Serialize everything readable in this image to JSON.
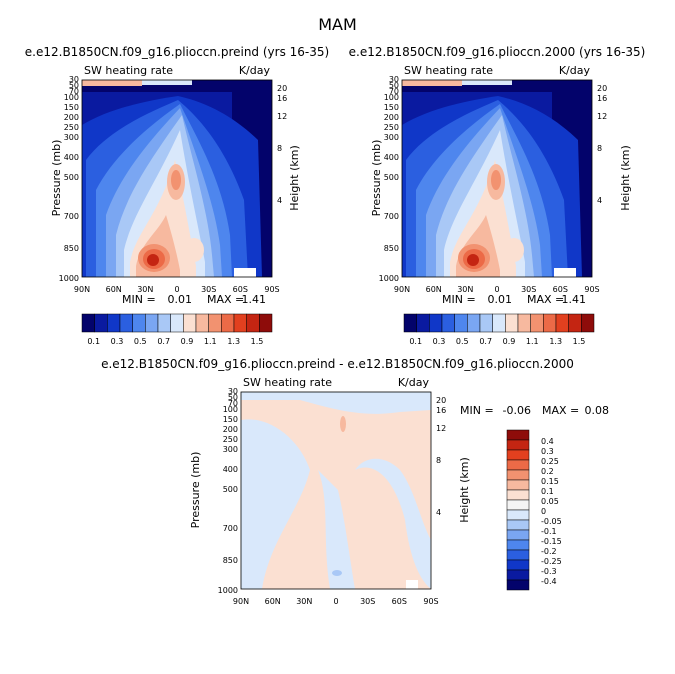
{
  "figure": {
    "title": "MAM",
    "colors": {
      "scale": [
        "#03036b",
        "#0a1aa0",
        "#1037c8",
        "#2b5fe0",
        "#4e86ee",
        "#7aa6f2",
        "#a9c8f6",
        "#d9e8fb",
        "#fbe0d2",
        "#f7b99f",
        "#f29270",
        "#ec6a47",
        "#e2401f",
        "#c42512",
        "#8e0c0a"
      ],
      "diff_scale": [
        "#03036b",
        "#0a1aa0",
        "#1037c8",
        "#2b5fe0",
        "#4e86ee",
        "#7aa6f2",
        "#a9c8f6",
        "#d9e8fb",
        "#f4f4f4",
        "#fbe0d2",
        "#f7b99f",
        "#f29270",
        "#ec6a47",
        "#e2401f",
        "#c42512",
        "#8e0c0a"
      ]
    }
  },
  "chart_data": [
    {
      "type": "heatmap",
      "title": "e.e12.B1850CN.f09_g16.plioccn.preind (yrs 16-35)",
      "left_label": "SW heating rate",
      "right_label": "K/day",
      "ylabel": "Pressure (mb)",
      "ylabel_right": "Height (km)",
      "xticks": [
        "90N",
        "60N",
        "30N",
        "0",
        "30S",
        "60S",
        "90S"
      ],
      "yticks": [
        "30",
        "50",
        "70",
        "100",
        "150",
        "200",
        "250",
        "300",
        "400",
        "500",
        "700",
        "850",
        "1000"
      ],
      "height_ticks": [
        "20",
        "16",
        "12",
        "8",
        "4"
      ],
      "min_label": "MIN =",
      "min_value": "0.01",
      "max_label": "MAX =",
      "max_value": "1.41",
      "colorbar_labels": [
        "0.1",
        "0.3",
        "0.5",
        "0.7",
        "0.9",
        "1.1",
        "1.3",
        "1.5"
      ],
      "features": {
        "tropical_core_max": 1.41,
        "surface_max_latitude": "20N",
        "minimum_region": "high southern latitudes"
      }
    },
    {
      "type": "heatmap",
      "title": "e.e12.B1850CN.f09_g16.plioccn.2000 (yrs 16-35)",
      "left_label": "SW heating rate",
      "right_label": "K/day",
      "ylabel": "Pressure (mb)",
      "ylabel_right": "Height (km)",
      "xticks": [
        "90N",
        "60N",
        "30N",
        "0",
        "30S",
        "60S",
        "90S"
      ],
      "yticks": [
        "30",
        "50",
        "70",
        "100",
        "150",
        "200",
        "250",
        "300",
        "400",
        "500",
        "700",
        "850",
        "1000"
      ],
      "height_ticks": [
        "20",
        "16",
        "12",
        "8",
        "4"
      ],
      "min_label": "MIN =",
      "min_value": "0.01",
      "max_label": "MAX =",
      "max_value": "1.41",
      "colorbar_labels": [
        "0.1",
        "0.3",
        "0.5",
        "0.7",
        "0.9",
        "1.1",
        "1.3",
        "1.5"
      ]
    },
    {
      "type": "heatmap",
      "title": "e.e12.B1850CN.f09_g16.plioccn.preind - e.e12.B1850CN.f09_g16.plioccn.2000",
      "left_label": "SW heating rate",
      "right_label": "K/day",
      "ylabel": "Pressure (mb)",
      "ylabel_right": "Height (km)",
      "xticks": [
        "90N",
        "60N",
        "30N",
        "0",
        "30S",
        "60S",
        "90S"
      ],
      "yticks": [
        "30",
        "50",
        "70",
        "100",
        "150",
        "200",
        "250",
        "300",
        "400",
        "500",
        "700",
        "850",
        "1000"
      ],
      "height_ticks": [
        "20",
        "16",
        "12",
        "8",
        "4"
      ],
      "min_label": "MIN =",
      "min_value": "-0.06",
      "max_label": "MAX =",
      "max_value": "0.08",
      "colorbar_labels": [
        "0.4",
        "0.3",
        "0.25",
        "0.2",
        "0.15",
        "0.1",
        "0.05",
        "0",
        "-0.05",
        "-0.1",
        "-0.15",
        "-0.2",
        "-0.25",
        "-0.3",
        "-0.4"
      ]
    }
  ]
}
